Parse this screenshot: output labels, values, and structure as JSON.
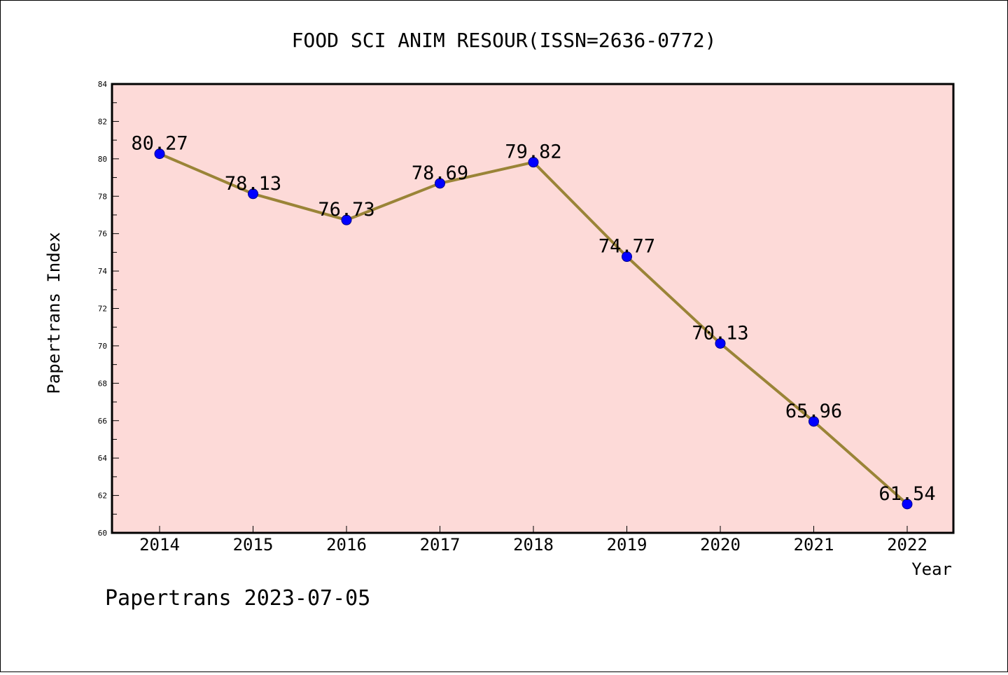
{
  "chart_data": {
    "type": "line",
    "title": "FOOD SCI ANIM RESOUR(ISSN=2636-0772)",
    "xlabel": "Year",
    "ylabel": "Papertrans Index",
    "categories": [
      "2014",
      "2015",
      "2016",
      "2017",
      "2018",
      "2019",
      "2020",
      "2021",
      "2022"
    ],
    "series": [
      {
        "values": [
          80.27,
          78.13,
          76.73,
          78.69,
          79.82,
          74.77,
          70.13,
          65.96,
          61.54
        ]
      }
    ],
    "data_labels": [
      "80.27",
      "78.13",
      "76.73",
      "78.69",
      "79.82",
      "74.77",
      "70.13",
      "65.96",
      "61.54"
    ],
    "ylim": [
      60,
      84
    ],
    "yticks": [
      "60",
      "62",
      "64",
      "66",
      "68",
      "70",
      "72",
      "74",
      "76",
      "78",
      "80",
      "82",
      "84"
    ],
    "grid": false,
    "colors": {
      "plot_background": "#fddad8",
      "line": "#9a8437",
      "marker": "#0000ff"
    }
  },
  "footer": "Papertrans 2023-07-05"
}
